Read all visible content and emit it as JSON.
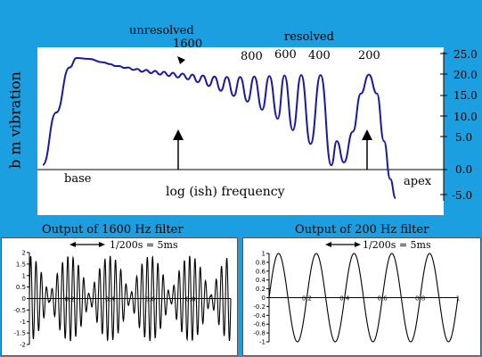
{
  "top_labels": {
    "unresolved": "unresolved",
    "unresolved_freq": "1600",
    "resolved": "resolved",
    "freqs": [
      "800",
      "600",
      "400",
      "200"
    ]
  },
  "axis": {
    "ylabel": "b m vibration",
    "xlabel": "log (ish) frequency",
    "base": "base",
    "apex": "apex",
    "right_ticks": [
      "25.0",
      "20.0",
      "15.0",
      "10.0",
      "5.0",
      "0.0",
      "-5.0"
    ]
  },
  "panels": {
    "left": {
      "title": "Output of 1600 Hz filter",
      "period_label": "1/200s = 5ms",
      "yticks": [
        "2",
        "1.5",
        "1",
        "0.5",
        "0",
        "-0.5",
        "-1",
        "-1.5",
        "-2"
      ],
      "xticks": [
        "0.2",
        "0.4",
        "0.6",
        "0.8"
      ]
    },
    "right": {
      "title": "Output of 200 Hz filter",
      "period_label": "1/200s = 5ms",
      "yticks": [
        "1",
        "0.8",
        "0.6",
        "0.4",
        "0.2",
        "0",
        "-0.2",
        "-0.4",
        "-0.6",
        "-0.8",
        "-1"
      ],
      "xticks": [
        "0",
        "0.2",
        "0.4",
        "0.6",
        "0.8",
        "1"
      ]
    }
  },
  "colors": {
    "background": "#1c9fe0",
    "panel": "#ffffff",
    "curve": "#1a1aa0"
  }
}
